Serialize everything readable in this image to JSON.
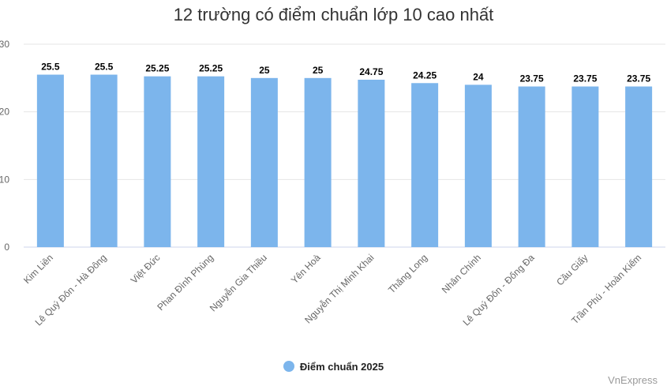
{
  "chart_data": {
    "type": "bar",
    "title": "12 trường có điểm chuẩn lớp 10 cao nhất",
    "categories": [
      "Kim Liên",
      "Lê Quý Đôn - Hà Đông",
      "Việt Đức",
      "Phan Đình Phùng",
      "Nguyễn Gia Thiều",
      "Yên Hoà",
      "Nguyễn Thị Minh Khai",
      "Thăng Long",
      "Nhân Chính",
      "Lê Quý Đôn - Đống Đa",
      "Cầu Giấy",
      "Trần Phú - Hoàn Kiếm"
    ],
    "series": [
      {
        "name": "Điểm chuẩn 2025",
        "values": [
          25.5,
          25.5,
          25.25,
          25.25,
          25,
          25,
          24.75,
          24.25,
          24,
          23.75,
          23.75,
          23.75
        ],
        "color": "#7cb5ec"
      }
    ],
    "data_labels": [
      "25.5",
      "25.5",
      "25.25",
      "25.25",
      "25",
      "25",
      "24.75",
      "24.25",
      "24",
      "23.75",
      "23.75",
      "23.75"
    ],
    "y_ticks": [
      "0",
      "10",
      "20",
      "30"
    ],
    "ylim": [
      0,
      30
    ],
    "grid": true,
    "legend_position": "bottom-center"
  },
  "credit": "VnExpress"
}
